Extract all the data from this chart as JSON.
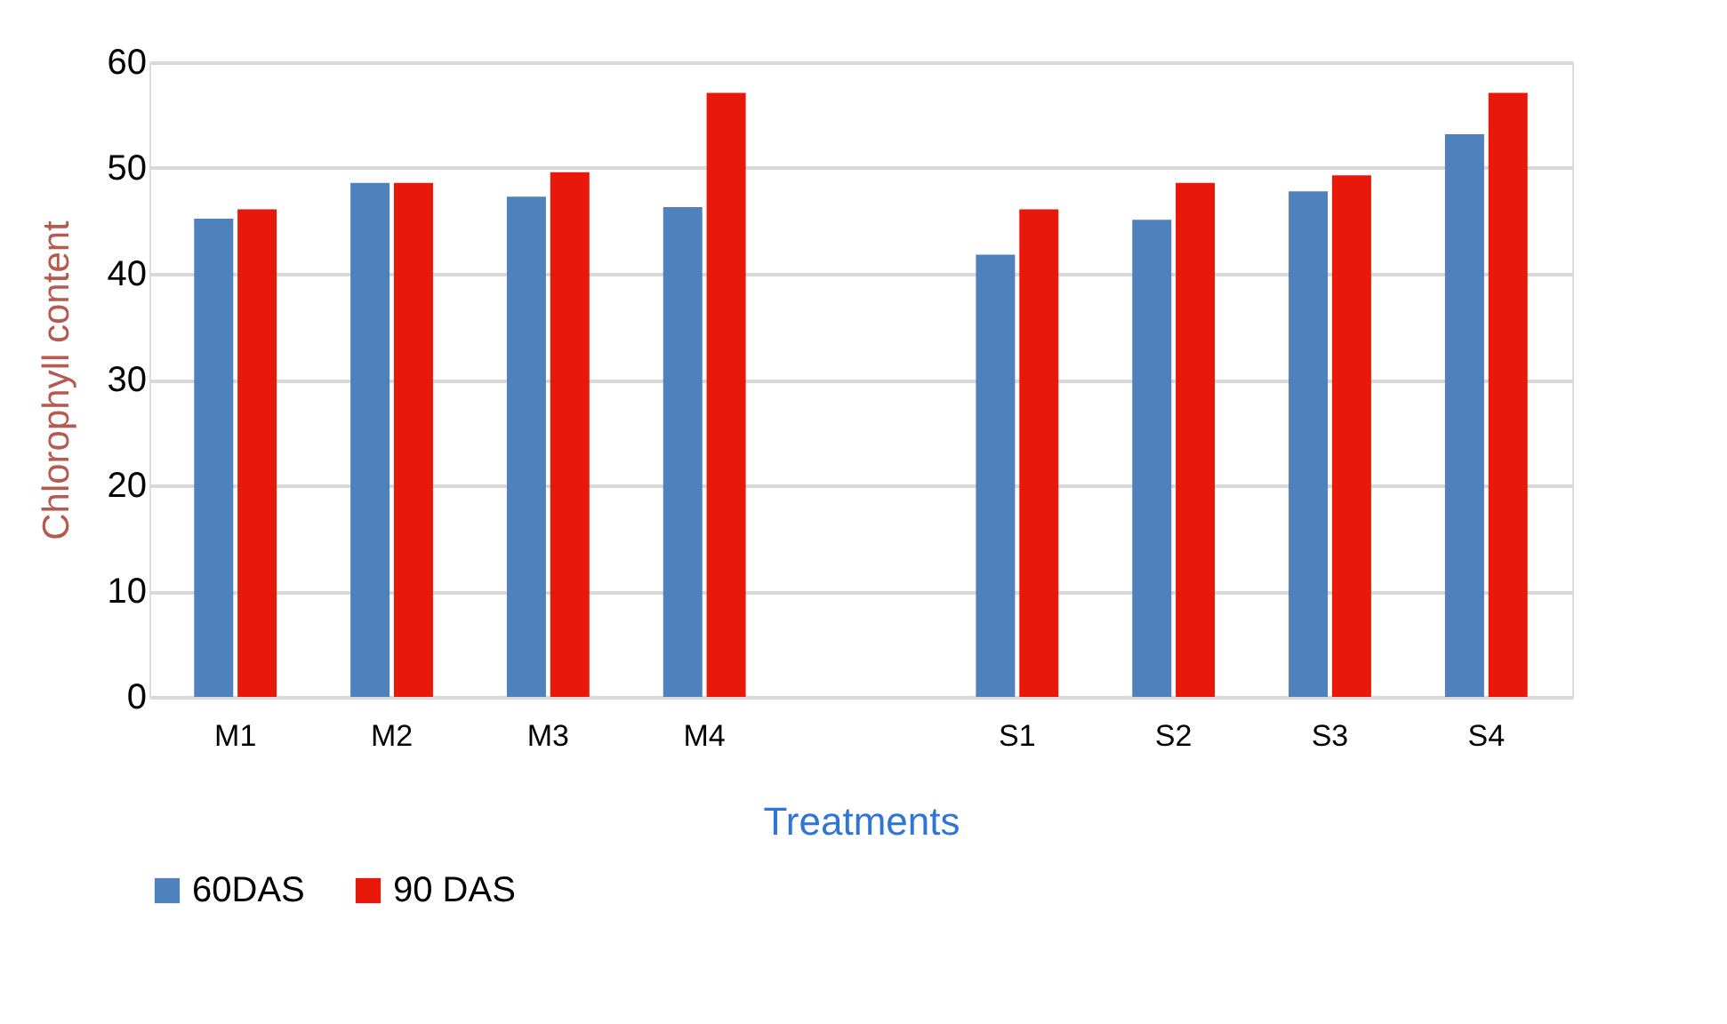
{
  "chart_data": {
    "type": "bar",
    "xlabel": "Treatments",
    "ylabel": "Chlorophyll content",
    "categories": [
      "M1",
      "M2",
      "M3",
      "M4",
      null,
      "S1",
      "S2",
      "S3",
      "S4"
    ],
    "series": [
      {
        "name": "60DAS",
        "color": "#4f81bd",
        "values": [
          45.2,
          48.6,
          47.3,
          46.3,
          null,
          41.8,
          45.1,
          47.8,
          53.2
        ]
      },
      {
        "name": "90 DAS",
        "color": "#e8190a",
        "values": [
          46.1,
          48.6,
          49.6,
          57.1,
          null,
          46.1,
          48.6,
          49.3,
          57.1
        ]
      }
    ],
    "ylim": [
      0,
      60
    ],
    "yticks": [
      0,
      10,
      20,
      30,
      40,
      50,
      60
    ],
    "grid": "y",
    "legend": "bottom"
  }
}
